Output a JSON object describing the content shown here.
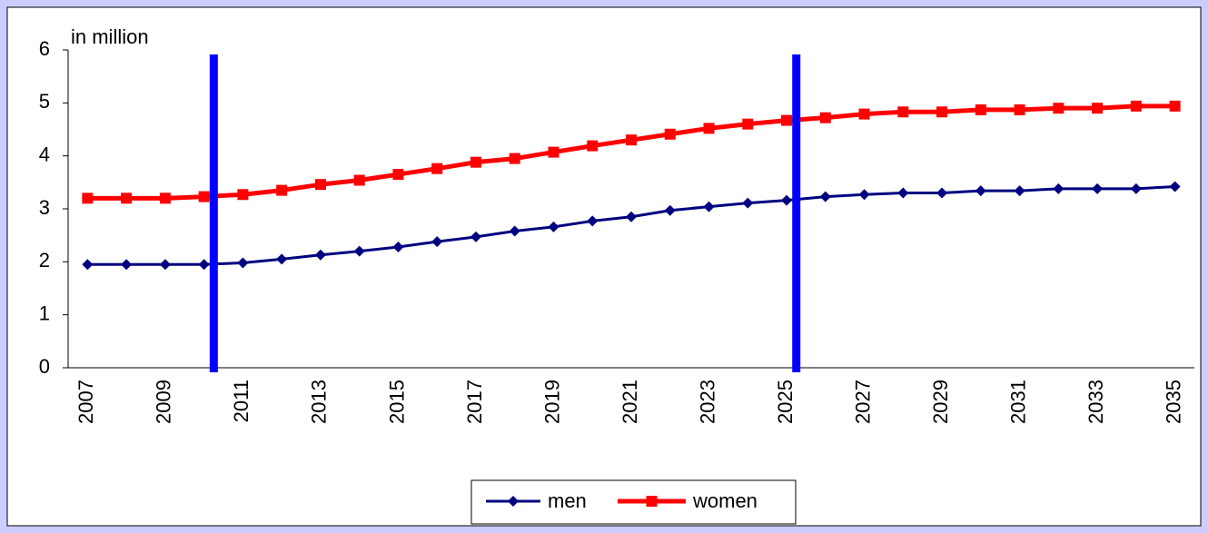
{
  "chart_data": {
    "type": "line",
    "y_axis_label": "in million",
    "categories": [
      "2007",
      null,
      "2009",
      null,
      "2011",
      null,
      "2013",
      null,
      "2015",
      null,
      "2017",
      null,
      "2019",
      null,
      "2021",
      null,
      "2023",
      null,
      "2025",
      null,
      "2027",
      null,
      "2029",
      null,
      "2031",
      null,
      "2033",
      null,
      "2035"
    ],
    "series": [
      {
        "name": "men",
        "color": "#000080",
        "marker": "diamond",
        "values": [
          1.95,
          1.95,
          1.95,
          1.95,
          1.98,
          2.05,
          2.13,
          2.2,
          2.28,
          2.38,
          2.47,
          2.58,
          2.66,
          2.77,
          2.85,
          2.97,
          3.04,
          3.11,
          3.16,
          3.23,
          3.27,
          3.3,
          3.3,
          3.34,
          3.34,
          3.38,
          3.38,
          3.38,
          3.42
        ]
      },
      {
        "name": "women",
        "color": "#ff0000",
        "marker": "square",
        "values": [
          3.2,
          3.2,
          3.2,
          3.23,
          3.27,
          3.35,
          3.46,
          3.54,
          3.65,
          3.76,
          3.88,
          3.95,
          4.07,
          4.19,
          4.3,
          4.41,
          4.52,
          4.6,
          4.67,
          4.72,
          4.79,
          4.83,
          4.83,
          4.87,
          4.87,
          4.9,
          4.9,
          4.94,
          4.94
        ]
      }
    ],
    "vertical_lines": [
      {
        "x": 3.25,
        "color": "#0000ff"
      },
      {
        "x": 18.25,
        "color": "#0000ff"
      }
    ],
    "ylim": [
      0,
      6
    ],
    "yticks": [
      0,
      1,
      2,
      3,
      4,
      5,
      6
    ],
    "legend": "bottom"
  }
}
